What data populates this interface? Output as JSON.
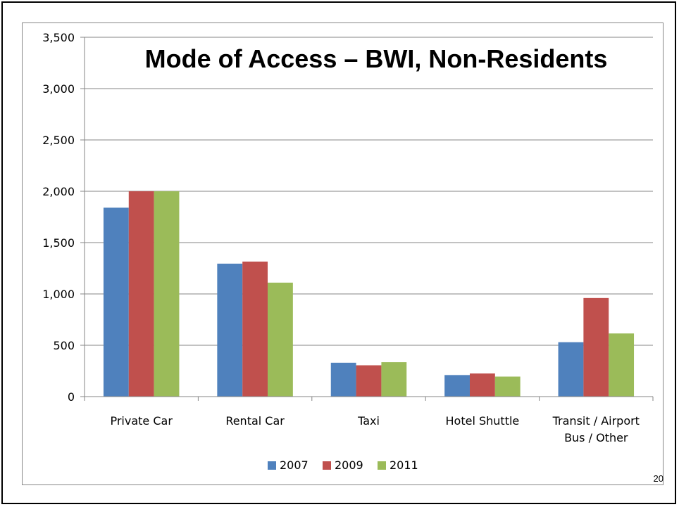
{
  "slide": {
    "page_number": "20"
  },
  "chart_data": {
    "type": "bar",
    "title": "Mode of Access – BWI, Non-Residents",
    "xlabel": "",
    "ylabel": "",
    "ylim": [
      0,
      3500
    ],
    "yticks": [
      "0",
      "500",
      "1,000",
      "1,500",
      "2,000",
      "2,500",
      "3,000",
      "3,500"
    ],
    "grid": true,
    "legend_position": "bottom",
    "categories": [
      [
        "Private Car"
      ],
      [
        "Rental Car"
      ],
      [
        "Taxi"
      ],
      [
        "Hotel Shuttle"
      ],
      [
        "Transit / Airport",
        "Bus / Other"
      ]
    ],
    "series": [
      {
        "name": "2007",
        "color": "#4F81BD",
        "values": [
          1840,
          1295,
          330,
          210,
          530
        ]
      },
      {
        "name": "2009",
        "color": "#C0504D",
        "values": [
          2000,
          1315,
          305,
          225,
          960
        ]
      },
      {
        "name": "2011",
        "color": "#9BBB59",
        "values": [
          2000,
          1110,
          335,
          195,
          615
        ]
      }
    ]
  }
}
